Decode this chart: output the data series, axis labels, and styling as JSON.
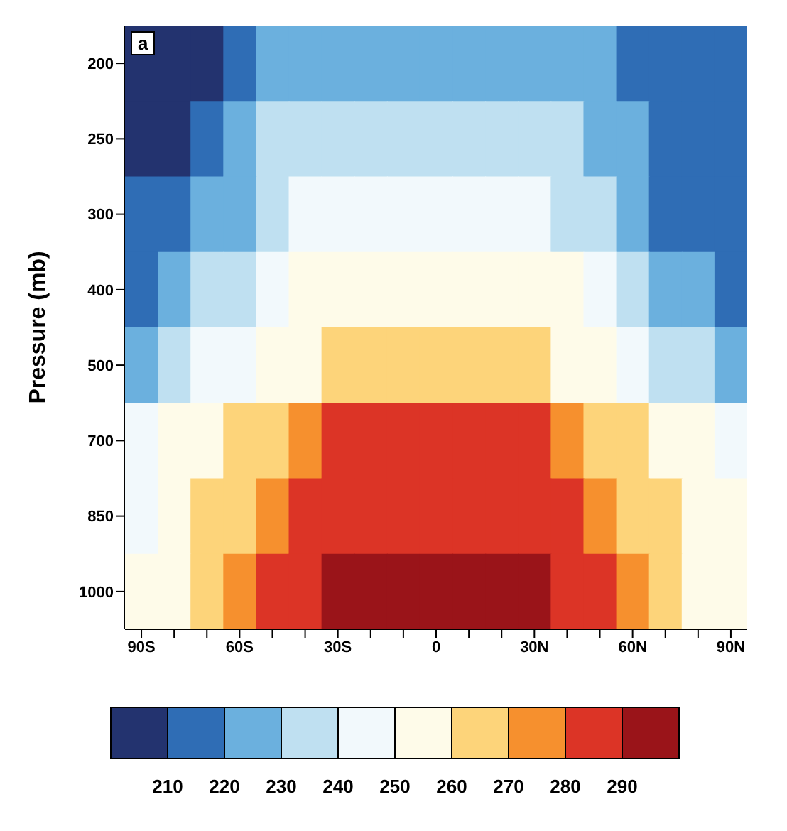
{
  "chart_data": {
    "type": "heatmap",
    "annotations": [
      "a"
    ],
    "ylabel": "Pressure (mb)",
    "categories": [
      "90S",
      null,
      null,
      "60S",
      null,
      null,
      "30S",
      null,
      null,
      "0",
      null,
      null,
      "30N",
      null,
      null,
      "60N",
      null,
      null,
      "90N"
    ],
    "y_categories": [
      "200",
      "250",
      "300",
      "400",
      "500",
      "700",
      "850",
      "1000"
    ],
    "cells": [
      [
        205,
        205,
        205,
        215,
        225,
        225,
        225,
        225,
        225,
        225,
        225,
        225,
        225,
        225,
        225,
        215,
        215,
        215,
        215
      ],
      [
        205,
        205,
        215,
        225,
        235,
        235,
        235,
        235,
        235,
        235,
        235,
        235,
        235,
        235,
        225,
        225,
        215,
        215,
        215
      ],
      [
        215,
        215,
        225,
        225,
        235,
        245,
        245,
        245,
        245,
        245,
        245,
        245,
        245,
        235,
        235,
        225,
        215,
        215,
        215
      ],
      [
        215,
        225,
        235,
        235,
        245,
        255,
        255,
        255,
        255,
        255,
        255,
        255,
        255,
        255,
        245,
        235,
        225,
        225,
        215
      ],
      [
        225,
        235,
        245,
        245,
        255,
        255,
        265,
        265,
        265,
        265,
        265,
        265,
        265,
        255,
        255,
        245,
        235,
        235,
        225
      ],
      [
        245,
        255,
        255,
        265,
        265,
        275,
        285,
        285,
        285,
        285,
        285,
        285,
        285,
        275,
        265,
        265,
        255,
        255,
        245
      ],
      [
        245,
        255,
        265,
        265,
        275,
        285,
        285,
        285,
        285,
        285,
        285,
        285,
        285,
        285,
        275,
        265,
        265,
        255,
        255
      ],
      [
        255,
        255,
        265,
        275,
        285,
        285,
        295,
        295,
        295,
        295,
        295,
        295,
        295,
        285,
        285,
        275,
        265,
        255,
        255
      ]
    ],
    "colors": [
      "#23336f",
      "#2f6db5",
      "#6bb0de",
      "#bfe0f1",
      "#f2f9fc",
      "#fefbe9",
      "#fdd47a",
      "#f6902e",
      "#dc3426",
      "#9a1419"
    ],
    "clim": [
      200,
      300
    ],
    "cticks": [
      210,
      220,
      230,
      240,
      250,
      260,
      270,
      280,
      290
    ]
  }
}
